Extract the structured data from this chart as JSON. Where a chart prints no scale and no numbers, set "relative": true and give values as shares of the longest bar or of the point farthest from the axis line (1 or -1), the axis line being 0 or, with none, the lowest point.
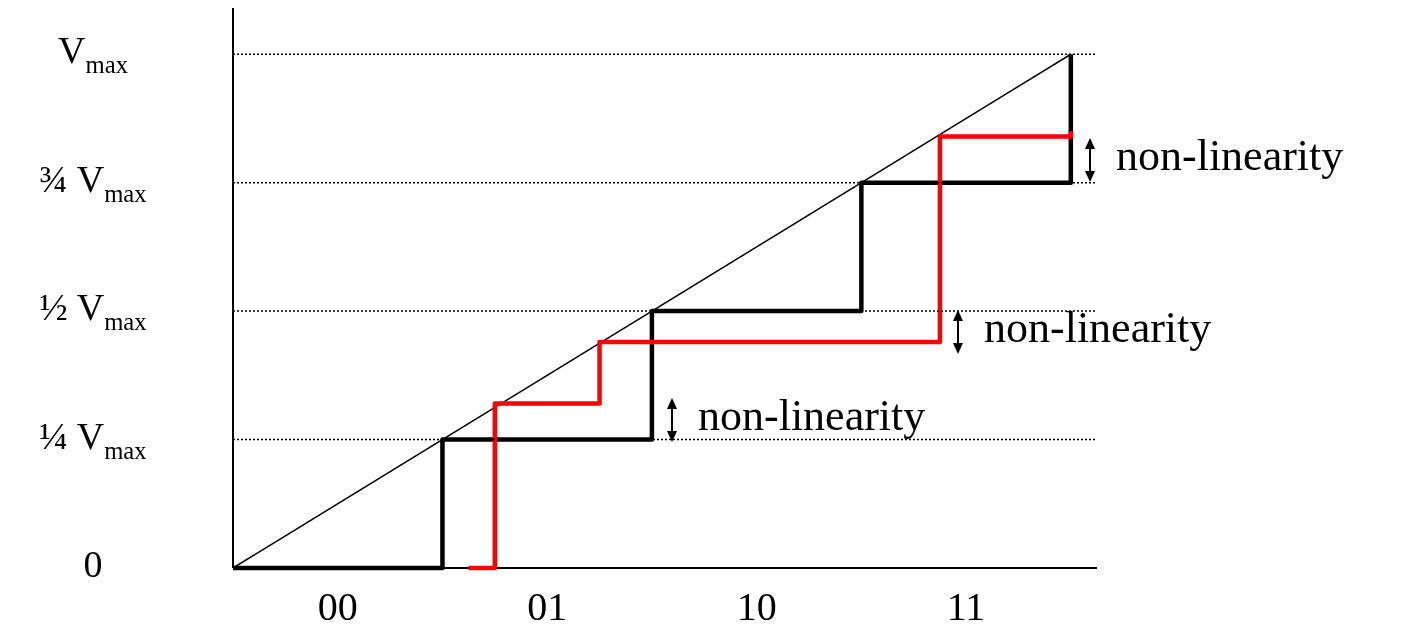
{
  "chart_data": {
    "type": "step",
    "relative": true,
    "marker": "none",
    "categories": [
      null,
      null,
      null,
      null,
      "00",
      null,
      null,
      null,
      null,
      null,
      null,
      null,
      "01",
      null,
      null,
      null,
      null,
      null,
      null,
      null,
      "10",
      null,
      null,
      null,
      null,
      null,
      null,
      null,
      "11",
      null,
      null,
      null,
      null,
      null
    ],
    "series": [
      {
        "type": "line",
        "color": "#000000",
        "values": [
          0,
          null,
          null,
          null,
          null,
          null,
          null,
          null,
          null,
          null,
          null,
          null,
          null,
          null,
          null,
          null,
          null,
          null,
          null,
          null,
          null,
          null,
          null,
          null,
          null,
          null,
          null,
          null,
          null,
          null,
          null,
          null,
          1,
          null
        ]
      },
      {
        "color": "#000000",
        "values": [
          0,
          0,
          0,
          0,
          0,
          0,
          0,
          0,
          0.25,
          0.25,
          0.25,
          0.25,
          0.25,
          0.25,
          0.25,
          0.25,
          0.5,
          0.5,
          0.5,
          0.5,
          0.5,
          0.5,
          0.5,
          0.5,
          0.75,
          0.75,
          0.75,
          0.75,
          0.75,
          0.75,
          0.75,
          0.75,
          1,
          null
        ]
      },
      {
        "color": "#ff0000",
        "values": [
          null,
          null,
          null,
          null,
          null,
          null,
          null,
          null,
          null,
          0,
          0.32,
          0.32,
          0.32,
          0.32,
          0.44,
          0.44,
          0.44,
          0.44,
          0.44,
          0.44,
          0.44,
          0.44,
          0.44,
          0.44,
          0.44,
          0.44,
          0.44,
          0.84,
          0.84,
          0.84,
          0.84,
          0.84,
          0.85,
          null
        ]
      }
    ],
    "ref_lines": [
      {
        "axis": "y",
        "value": 0.25,
        "label": "¼ V$_{max}$",
        "line_style": "dotted"
      },
      {
        "axis": "y",
        "value": 0.5,
        "label": "½ V$_{max}$",
        "line_style": "dotted"
      },
      {
        "axis": "y",
        "value": 0.75,
        "label": "¾ V$_{max}$",
        "line_style": "dotted"
      },
      {
        "axis": "y",
        "value": 1,
        "label": "V$_{max}$",
        "line_style": "dotted"
      }
    ],
    "annotations": [
      "0",
      "non-linearity",
      "non-linearity",
      "non-linearity"
    ]
  }
}
